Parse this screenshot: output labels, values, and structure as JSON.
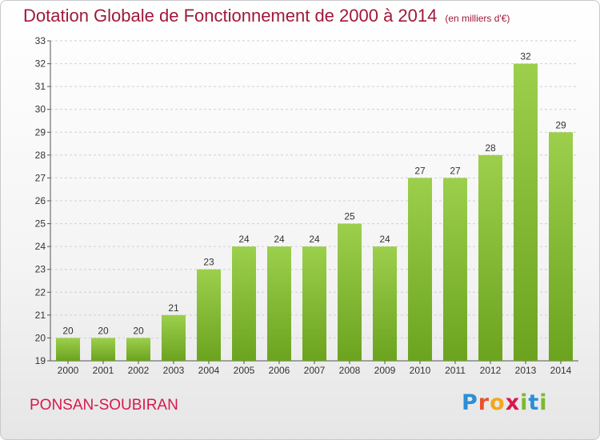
{
  "header": {
    "title": "Dotation Globale de Fonctionnement de 2000 à 2014",
    "subtitle": "(en milliers d'€)"
  },
  "footer": {
    "commune": "PONSAN-SOUBIRAN",
    "logo_letters": [
      {
        "char": "P",
        "color": "#2b8fd6"
      },
      {
        "char": "r",
        "color": "#e8532b"
      },
      {
        "char": "o",
        "color": "#f2a81d"
      },
      {
        "char": "x",
        "color": "#d7194d"
      },
      {
        "char": "i",
        "color": "#7cb82f"
      },
      {
        "char": "t",
        "color": "#2b8fd6"
      },
      {
        "char": "i",
        "color": "#7cb82f"
      }
    ]
  },
  "colors": {
    "bar_top": "#9ccf4c",
    "bar_bottom": "#6ba31f",
    "grid": "#d0d0d0",
    "title": "#a0193a",
    "commune": "#d7194d"
  },
  "chart_data": {
    "type": "bar",
    "title": "Dotation Globale de Fonctionnement de 2000 à 2014",
    "subtitle": "(en milliers d'€)",
    "categories": [
      "2000",
      "2001",
      "2002",
      "2003",
      "2004",
      "2005",
      "2006",
      "2007",
      "2008",
      "2009",
      "2010",
      "2011",
      "2012",
      "2013",
      "2014"
    ],
    "values": [
      20,
      20,
      20,
      21,
      23,
      24,
      24,
      24,
      25,
      24,
      27,
      27,
      28,
      32,
      29
    ],
    "ylim": [
      19,
      33
    ],
    "yticks": [
      19,
      20,
      21,
      22,
      23,
      24,
      25,
      26,
      27,
      28,
      29,
      30,
      31,
      32,
      33
    ],
    "grid": true,
    "xlabel": "",
    "ylabel": ""
  }
}
